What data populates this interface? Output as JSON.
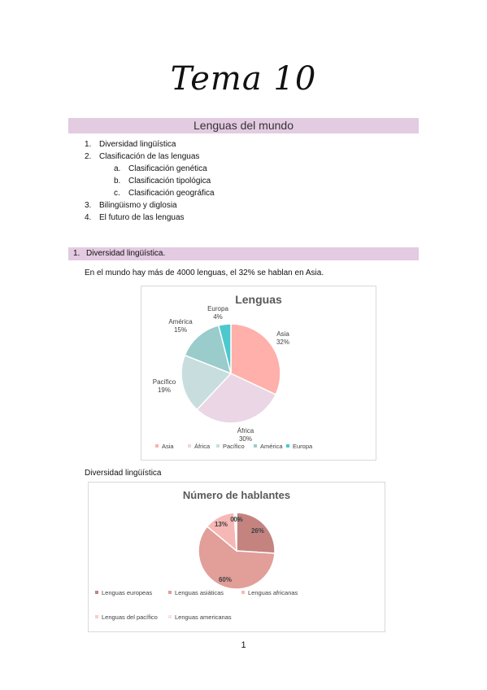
{
  "page": {
    "title": "Tema 10",
    "section_banner": "Lenguas del mundo",
    "page_number": "1"
  },
  "toc": [
    {
      "num": "1.",
      "text": "Diversidad lingüística",
      "level": 1
    },
    {
      "num": "2.",
      "text": "Clasificación de las lenguas",
      "level": 1
    },
    {
      "num": "a.",
      "text": "Clasificación genética",
      "level": 2
    },
    {
      "num": "b.",
      "text": "Clasificación tipológica",
      "level": 2
    },
    {
      "num": "c.",
      "text": "Clasificación geográfica",
      "level": 2
    },
    {
      "num": "3.",
      "text": "Bilingüismo y diglosia",
      "level": 1
    },
    {
      "num": "4.",
      "text": "El futuro de las lenguas",
      "level": 1
    }
  ],
  "section1": {
    "num": "1.",
    "heading": "Diversidad lingüística.",
    "paragraph": "En el mundo hay más de 4000 lenguas, el 32% se hablan en Asia.",
    "caption": "Diversidad lingüística"
  },
  "chart_data": [
    {
      "type": "pie",
      "title": "Lenguas",
      "categories": [
        "Asia",
        "África",
        "Pacífico",
        "América",
        "Europa"
      ],
      "values": [
        32,
        30,
        19,
        15,
        4
      ],
      "labels": [
        "32%",
        "30%",
        "19%",
        "15%",
        "4%"
      ],
      "colors": [
        "#ffb0aa",
        "#ead6e4",
        "#c8dede",
        "#99cccb",
        "#4dc8cf"
      ],
      "legend": "bottom"
    },
    {
      "type": "pie",
      "title": "Número de hablantes",
      "categories": [
        "Lenguas europeas",
        "Lenguas asiáticas",
        "Lenguas africanas",
        "Lenguas del pacífico",
        "Lenguas americanas"
      ],
      "values": [
        26,
        60,
        13,
        0.5,
        0.5
      ],
      "labels": [
        "26%",
        "60%",
        "13%",
        "0%",
        "0%"
      ],
      "colors": [
        "#c4837f",
        "#e29e98",
        "#f6b8b5",
        "#f9ccc9",
        "#fce0de"
      ],
      "legend": "bottom"
    }
  ]
}
